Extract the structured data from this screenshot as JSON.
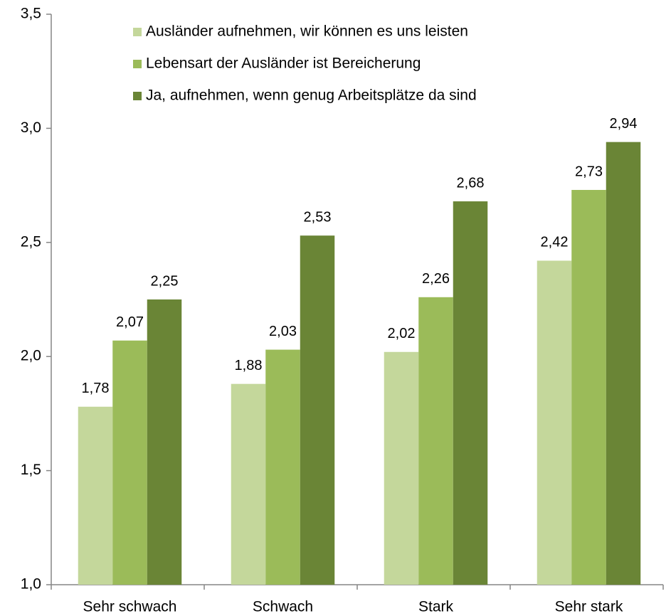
{
  "chart_data": {
    "type": "bar",
    "categories": [
      "Sehr schwach",
      "Schwach",
      "Stark",
      "Sehr stark"
    ],
    "series": [
      {
        "name": "Ausländer aufnehmen, wir können es uns leisten",
        "color": "#c4d79b",
        "values": [
          1.78,
          1.88,
          2.02,
          2.42
        ],
        "value_labels": [
          "1,78",
          "1,88",
          "2,02",
          "2,42"
        ]
      },
      {
        "name": "Lebensart der Ausländer ist Bereicherung",
        "color": "#9bbb59",
        "values": [
          2.07,
          2.03,
          2.26,
          2.73
        ],
        "value_labels": [
          "2,07",
          "2,03",
          "2,26",
          "2,73"
        ]
      },
      {
        "name": "Ja, aufnehmen, wenn genug Arbeitsplätze da sind",
        "color": "#6a8536",
        "values": [
          2.25,
          2.53,
          2.68,
          2.94
        ],
        "value_labels": [
          "2,25",
          "2,53",
          "2,68",
          "2,94"
        ]
      }
    ],
    "ylim": [
      1,
      3.5
    ],
    "yticks": [
      {
        "value": 1,
        "label": "1,0"
      },
      {
        "value": 1.5,
        "label": "1,5"
      },
      {
        "value": 2,
        "label": "2,0"
      },
      {
        "value": 2.5,
        "label": "2,5"
      },
      {
        "value": 3,
        "label": "3,0"
      },
      {
        "value": 3.5,
        "label": "3,5"
      }
    ],
    "legend": "top"
  }
}
